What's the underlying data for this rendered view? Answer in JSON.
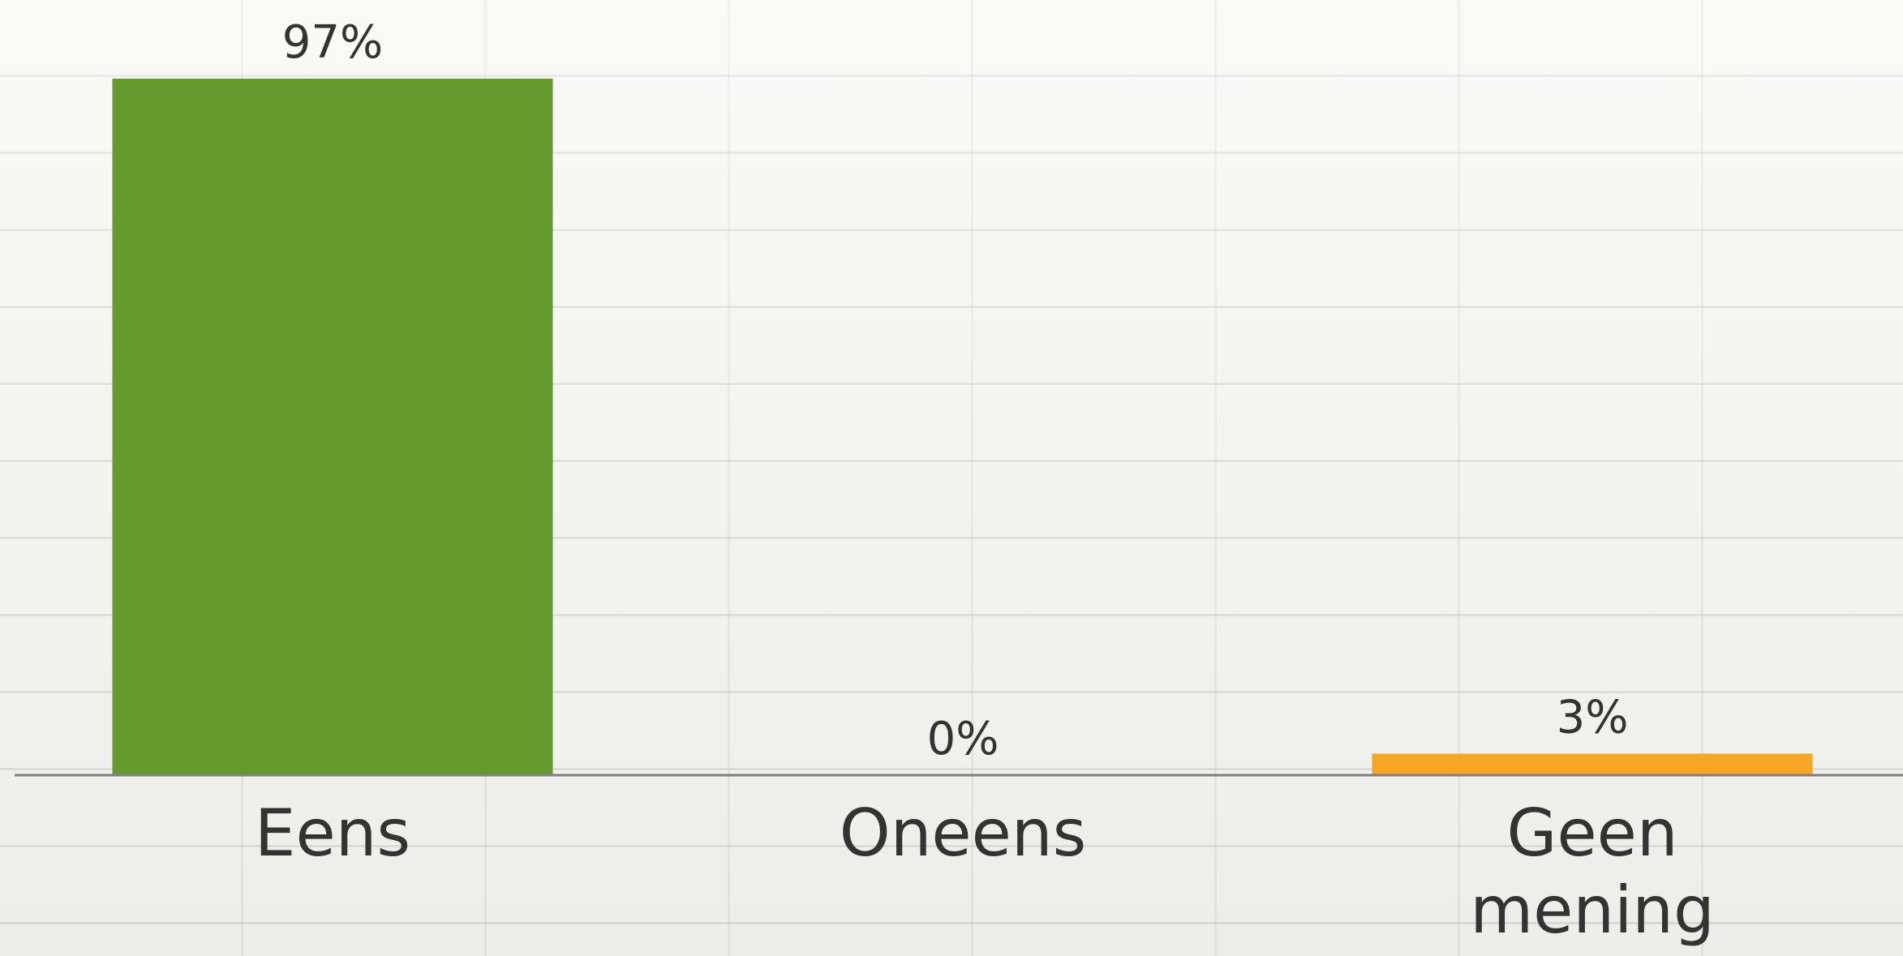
{
  "chart_data": {
    "type": "bar",
    "categories": [
      "Eens",
      "Oneens",
      "Geen mening"
    ],
    "category_lines": [
      [
        "Eens"
      ],
      [
        "Oneens"
      ],
      [
        "Geen",
        "mening"
      ]
    ],
    "values": [
      97,
      0,
      3
    ],
    "value_labels": [
      "97%",
      "0%",
      "3%"
    ],
    "colors": [
      "#659a2e",
      "#659a2e",
      "#f5a623"
    ],
    "ylim": [
      0,
      97
    ],
    "grid": false,
    "legend": "none",
    "baseline_color": "#7f7f7f"
  }
}
